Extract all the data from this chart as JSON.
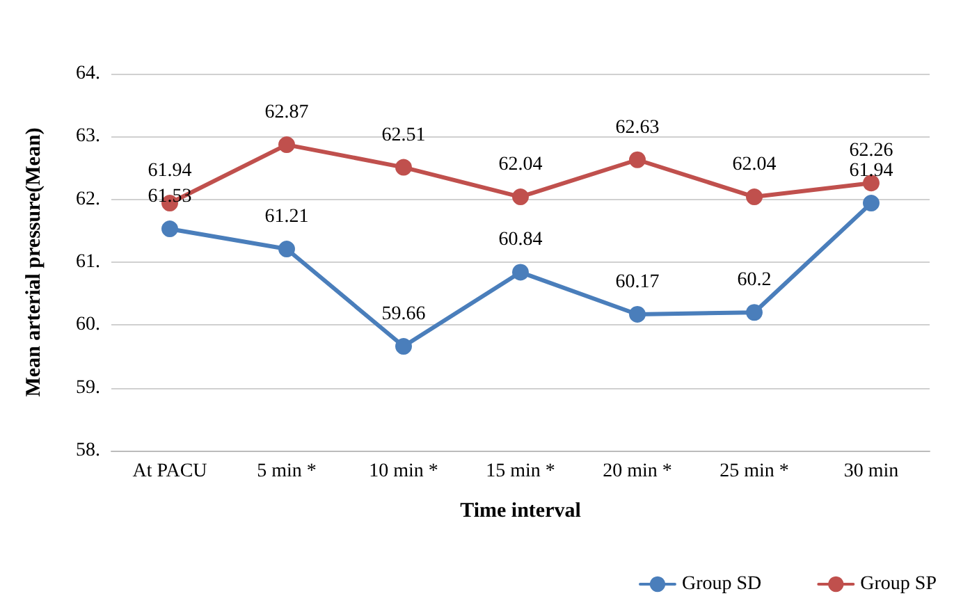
{
  "chart_data": {
    "type": "line",
    "xlabel": "Time interval",
    "ylabel": "Mean arterial pressure(Mean)",
    "categories": [
      "At PACU",
      "5 min *",
      "10 min *",
      "15 min *",
      "20 min *",
      "25 min *",
      "30 min"
    ],
    "series": [
      {
        "name": "Group SD",
        "color": "#4a7ebb",
        "values": [
          61.53,
          61.21,
          59.66,
          60.84,
          60.17,
          60.2,
          61.94
        ]
      },
      {
        "name": "Group SP",
        "color": "#c0504d",
        "values": [
          61.94,
          62.87,
          62.51,
          62.04,
          62.63,
          62.04,
          62.26
        ]
      }
    ],
    "ylim": [
      58,
      64
    ],
    "yticks": [
      {
        "value": 58,
        "label": "58."
      },
      {
        "value": 59,
        "label": "59."
      },
      {
        "value": 60,
        "label": "60."
      },
      {
        "value": 61,
        "label": "61."
      },
      {
        "value": 62,
        "label": "62."
      },
      {
        "value": 63,
        "label": "63."
      },
      {
        "value": 64,
        "label": "64."
      }
    ],
    "grid": "y",
    "legend": "bottom right",
    "marker": "circle",
    "line_style": "solid",
    "data_labels": true
  }
}
